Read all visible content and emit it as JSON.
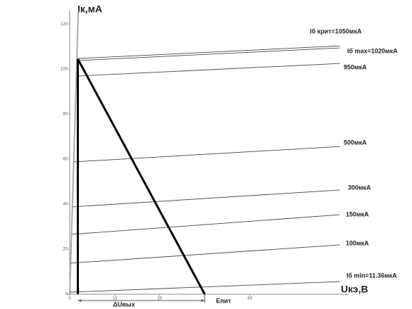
{
  "chart_data": {
    "type": "line",
    "x_label": "Uкэ,В",
    "y_label": "Iк,мА",
    "xlim": [
      0,
      61.5
    ],
    "ylim": [
      0,
      126
    ],
    "xticks": [
      0,
      10,
      20,
      40
    ],
    "yticks": [
      0,
      20,
      40,
      60,
      80,
      100,
      120
    ],
    "series": [
      {
        "name": "Iб крит=1050мкА",
        "color": "#444",
        "x": [
          1.8,
          60
        ],
        "values": [
          104.7,
          110.3
        ]
      },
      {
        "name": "Iб max=1020мкА",
        "color": "#444",
        "x": [
          1.8,
          60
        ],
        "values": [
          103.8,
          109.4
        ]
      },
      {
        "name": "950мкА",
        "color": "#444",
        "x": [
          1.6,
          60
        ],
        "values": [
          96.9,
          102.5
        ]
      },
      {
        "name": "500мкА",
        "color": "#444",
        "x": [
          0.9,
          60
        ],
        "values": [
          58.8,
          65.6
        ]
      },
      {
        "name": "300мкА",
        "color": "#444",
        "x": [
          0.6,
          60
        ],
        "values": [
          38.8,
          46.3
        ]
      },
      {
        "name": "150мкА",
        "color": "#444",
        "x": [
          0.4,
          60
        ],
        "values": [
          26.6,
          35.3
        ]
      },
      {
        "name": "100мкА",
        "color": "#444",
        "x": [
          0.2,
          60
        ],
        "values": [
          13.8,
          21.9
        ]
      },
      {
        "name": "Iб min=11.36мкА",
        "color": "#444",
        "x": [
          0,
          60
        ],
        "values": [
          0.9,
          5.6
        ]
      }
    ],
    "saturation_line": {
      "color": "#aaa",
      "x": [
        0,
        1.9
      ],
      "values": [
        0,
        126
      ]
    },
    "load_line": {
      "color": "#000",
      "x": [
        1.8,
        30
      ],
      "values": [
        104.5,
        0
      ]
    },
    "delta_u_label": "ΔUвых",
    "e_label": "Eпит"
  }
}
